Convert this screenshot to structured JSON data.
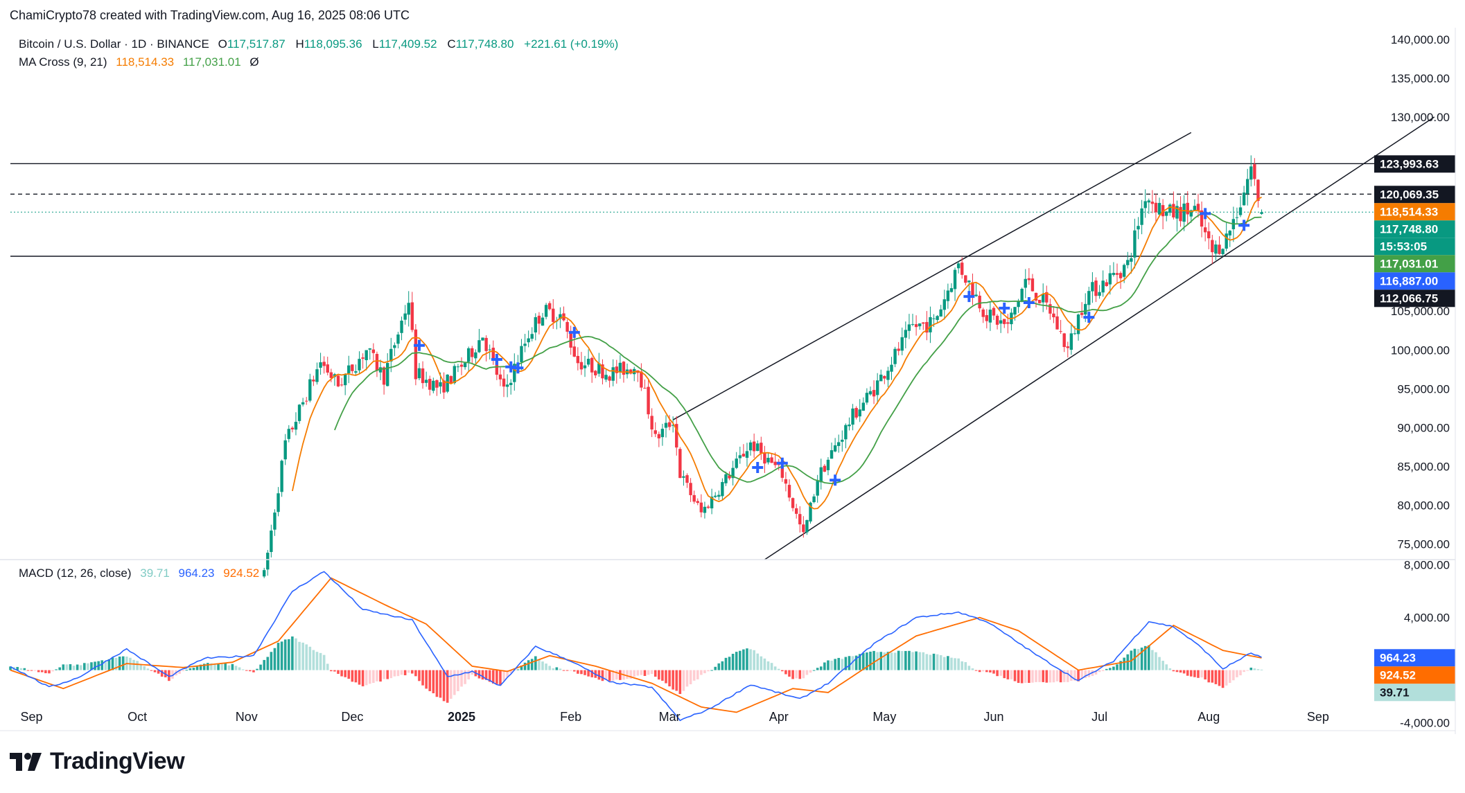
{
  "header": {
    "attribution": "ChamiCrypto78 created with TradingView.com, Aug 16, 2025 08:06 UTC"
  },
  "legend": {
    "symbol": "Bitcoin / U.S. Dollar · 1D · BINANCE",
    "open_label": "O",
    "open": "117,517.87",
    "high_label": "H",
    "high": "118,095.36",
    "low_label": "L",
    "low": "117,409.52",
    "close_label": "C",
    "close": "117,748.80",
    "change": "+221.61 (+0.19%)",
    "ma_name": "MA Cross (9, 21)",
    "ma_fast": "118,514.33",
    "ma_slow": "117,031.01",
    "ma_settings_symbol": "Ø",
    "macd_name": "MACD (12, 26, close)",
    "macd_hist": "39.71",
    "macd_line": "964.23",
    "macd_signal": "924.52"
  },
  "logo": {
    "text": "TradingView"
  },
  "colors": {
    "up": "#089981",
    "down": "#f23645",
    "ma_fast": "#f57c00",
    "ma_slow": "#43a047",
    "macd": "#2962ff",
    "signal": "#ff6d00",
    "hist_up_strong": "#26a69a",
    "hist_up_weak": "#b2dfdb",
    "hist_down_strong": "#ff5252",
    "hist_down_weak": "#ffcdd2",
    "grid": "#f0f3fa",
    "text": "#131722",
    "cross_marker": "#2962ff"
  },
  "chart_data": [
    {
      "type": "candlestick",
      "title": "Bitcoin / U.S. Dollar · 1D · BINANCE",
      "x_tick_labels": [
        "Sep",
        "Oct",
        "Nov",
        "Dec",
        "2025",
        "Feb",
        "Mar",
        "Apr",
        "May",
        "Jun",
        "Jul",
        "Aug",
        "Sep"
      ],
      "x_tick_dates": [
        "2024-09-01",
        "2024-10-01",
        "2024-11-01",
        "2024-12-01",
        "2025-01-01",
        "2025-02-01",
        "2025-03-01",
        "2025-04-01",
        "2025-05-01",
        "2025-06-01",
        "2025-07-01",
        "2025-08-01",
        "2025-09-01"
      ],
      "x_range": [
        "2024-08-26",
        "2025-10-07"
      ],
      "ylim": [
        73000,
        141500
      ],
      "y_tick_labels": [
        "140,000.00",
        "135,000.00",
        "130,000.00",
        "105,000.00",
        "100,000.00",
        "95,000.00",
        "90,000.00",
        "85,000.00",
        "80,000.00",
        "75,000.00"
      ],
      "y_ticks": [
        140000,
        135000,
        130000,
        105000,
        100000,
        95000,
        90000,
        85000,
        80000,
        75000
      ],
      "grid": false,
      "price_labels": [
        {
          "text": "123,993.63",
          "value": 123993.63,
          "color": "#131722",
          "text_color": "#ffffff"
        },
        {
          "text": "120,069.35",
          "value": 120069.35,
          "color": "#131722",
          "text_color": "#ffffff"
        },
        {
          "text": "118,514.33",
          "value": 118514.33,
          "color": "#f57c00",
          "text_color": "#ffffff"
        },
        {
          "text": "117,748.80",
          "value": 117748.8,
          "color": "#089981",
          "text_color": "#ffffff"
        },
        {
          "text": "15:53:05",
          "value": 117748.8,
          "color": "#089981",
          "text_color": "#ffffff"
        },
        {
          "text": "117,031.01",
          "value": 117031.01,
          "color": "#43a047",
          "text_color": "#ffffff"
        },
        {
          "text": "116,887.00",
          "value": 116887.0,
          "color": "#2962ff",
          "text_color": "#ffffff"
        },
        {
          "text": "112,066.75",
          "value": 112066.75,
          "color": "#131722",
          "text_color": "#ffffff"
        }
      ],
      "horizontal_lines": [
        {
          "value": 123993.63,
          "style": "solid"
        },
        {
          "value": 112066.75,
          "style": "solid"
        },
        {
          "value": 120069.35,
          "style": "dashed"
        },
        {
          "value": 117748.8,
          "style": "dotted"
        }
      ],
      "trend_lines": [
        {
          "from": [
            "2025-03-02",
            91000
          ],
          "to": [
            "2025-07-27",
            128000
          ]
        },
        {
          "from": [
            "2025-03-28",
            73000
          ],
          "to": [
            "2025-10-04",
            130000
          ]
        }
      ],
      "ohlc_anchors": [
        [
          "2024-11-06",
          71000
        ],
        [
          "2024-11-12",
          88000
        ],
        [
          "2024-11-22",
          98500
        ],
        [
          "2024-11-27",
          95500
        ],
        [
          "2024-12-05",
          100000
        ],
        [
          "2024-12-10",
          96500
        ],
        [
          "2024-12-17",
          106500
        ],
        [
          "2024-12-19",
          97000
        ],
        [
          "2024-12-26",
          95000
        ],
        [
          "2025-01-02",
          98500
        ],
        [
          "2025-01-07",
          102000
        ],
        [
          "2025-01-13",
          94500
        ],
        [
          "2025-01-20",
          102000
        ],
        [
          "2025-01-24",
          105000
        ],
        [
          "2025-01-29",
          104500
        ],
        [
          "2025-02-03",
          98500
        ],
        [
          "2025-02-12",
          97000
        ],
        [
          "2025-02-20",
          98000
        ],
        [
          "2025-02-25",
          88500
        ],
        [
          "2025-03-02",
          91000
        ],
        [
          "2025-03-04",
          84000
        ],
        [
          "2025-03-10",
          79000
        ],
        [
          "2025-03-18",
          84000
        ],
        [
          "2025-03-24",
          88000
        ],
        [
          "2025-04-02",
          84000
        ],
        [
          "2025-04-08",
          76000
        ],
        [
          "2025-04-12",
          83500
        ],
        [
          "2025-04-22",
          91500
        ],
        [
          "2025-04-28",
          95000
        ],
        [
          "2025-05-09",
          103000
        ],
        [
          "2025-05-15",
          103500
        ],
        [
          "2025-05-22",
          111000
        ],
        [
          "2025-05-30",
          104500
        ],
        [
          "2025-06-05",
          103000
        ],
        [
          "2025-06-10",
          109000
        ],
        [
          "2025-06-17",
          105000
        ],
        [
          "2025-06-22",
          100000
        ],
        [
          "2025-06-27",
          107000
        ],
        [
          "2025-07-03",
          109000
        ],
        [
          "2025-07-09",
          111000
        ],
        [
          "2025-07-14",
          120000
        ],
        [
          "2025-07-20",
          117500
        ],
        [
          "2025-07-28",
          118000
        ],
        [
          "2025-08-02",
          112500
        ],
        [
          "2025-08-06",
          114500
        ],
        [
          "2025-08-10",
          119000
        ],
        [
          "2025-08-13",
          123500
        ],
        [
          "2025-08-16",
          117748.8
        ]
      ],
      "last_candle": {
        "open": 117517.87,
        "high": 118095.36,
        "low": 117409.52,
        "close": 117748.8
      },
      "series": [
        {
          "name": "MA Cross (9, 21)",
          "last_values": [
            118514.33,
            117031.01
          ]
        }
      ],
      "cross_markers": [
        "2024-12-20",
        "2025-01-11",
        "2025-01-15",
        "2025-01-17",
        "2025-02-02",
        "2025-03-26",
        "2025-04-02",
        "2025-04-17",
        "2025-05-25",
        "2025-06-04",
        "2025-06-11",
        "2025-06-28",
        "2025-07-31",
        "2025-08-11"
      ]
    },
    {
      "type": "line",
      "title": "MACD (12, 26, close)",
      "ylim": [
        -4600,
        8400
      ],
      "y_tick_labels": [
        "8,000.00",
        "4,000.00",
        "-4,000.00"
      ],
      "y_ticks": [
        8000,
        4000,
        -4000
      ],
      "price_labels": [
        {
          "text": "964.23",
          "value": 964.23,
          "color": "#2962ff",
          "text_color": "#ffffff"
        },
        {
          "text": "924.52",
          "value": 924.52,
          "color": "#ff6d00",
          "text_color": "#ffffff"
        },
        {
          "text": "39.71",
          "value": 39.71,
          "color": "#b2dfdb",
          "text_color": "#131722"
        }
      ],
      "series": [
        {
          "name": "MACD",
          "anchors": [
            [
              "2024-08-26",
              300
            ],
            [
              "2024-09-06",
              -1300
            ],
            [
              "2024-09-14",
              -600
            ],
            [
              "2024-09-28",
              1600
            ],
            [
              "2024-10-10",
              -500
            ],
            [
              "2024-10-20",
              900
            ],
            [
              "2024-11-03",
              1100
            ],
            [
              "2024-11-14",
              6000
            ],
            [
              "2024-11-23",
              7500
            ],
            [
              "2024-12-04",
              4600
            ],
            [
              "2024-12-18",
              3800
            ],
            [
              "2024-12-28",
              -500
            ],
            [
              "2025-01-04",
              -100
            ],
            [
              "2025-01-12",
              -1200
            ],
            [
              "2025-01-22",
              1800
            ],
            [
              "2025-02-01",
              700
            ],
            [
              "2025-02-12",
              -900
            ],
            [
              "2025-02-24",
              -1300
            ],
            [
              "2025-03-04",
              -3800
            ],
            [
              "2025-03-12",
              -3000
            ],
            [
              "2025-03-24",
              -1100
            ],
            [
              "2025-04-07",
              -2200
            ],
            [
              "2025-04-15",
              -1000
            ],
            [
              "2025-04-28",
              2000
            ],
            [
              "2025-05-10",
              4000
            ],
            [
              "2025-05-22",
              4400
            ],
            [
              "2025-05-30",
              3700
            ],
            [
              "2025-06-14",
              1000
            ],
            [
              "2025-06-25",
              -800
            ],
            [
              "2025-07-05",
              700
            ],
            [
              "2025-07-15",
              3700
            ],
            [
              "2025-07-22",
              3300
            ],
            [
              "2025-07-30",
              1700
            ],
            [
              "2025-08-05",
              100
            ],
            [
              "2025-08-13",
              1300
            ],
            [
              "2025-08-16",
              964.23
            ]
          ]
        },
        {
          "name": "Signal",
          "anchors": [
            [
              "2024-08-26",
              0
            ],
            [
              "2024-09-10",
              -1400
            ],
            [
              "2024-09-28",
              500
            ],
            [
              "2024-10-14",
              200
            ],
            [
              "2024-10-28",
              600
            ],
            [
              "2024-11-10",
              2200
            ],
            [
              "2024-11-25",
              7000
            ],
            [
              "2024-12-10",
              5000
            ],
            [
              "2024-12-22",
              3500
            ],
            [
              "2025-01-04",
              300
            ],
            [
              "2025-01-14",
              -100
            ],
            [
              "2025-01-26",
              1100
            ],
            [
              "2025-02-08",
              300
            ],
            [
              "2025-02-24",
              -1000
            ],
            [
              "2025-03-10",
              -2800
            ],
            [
              "2025-03-20",
              -3200
            ],
            [
              "2025-04-05",
              -1400
            ],
            [
              "2025-04-15",
              -1700
            ],
            [
              "2025-04-28",
              600
            ],
            [
              "2025-05-10",
              2600
            ],
            [
              "2025-05-28",
              4000
            ],
            [
              "2025-06-08",
              3000
            ],
            [
              "2025-06-25",
              0
            ],
            [
              "2025-07-10",
              700
            ],
            [
              "2025-07-22",
              3400
            ],
            [
              "2025-08-05",
              1500
            ],
            [
              "2025-08-16",
              924.52
            ]
          ]
        },
        {
          "name": "Histogram",
          "last_value": 39.71
        }
      ]
    }
  ]
}
